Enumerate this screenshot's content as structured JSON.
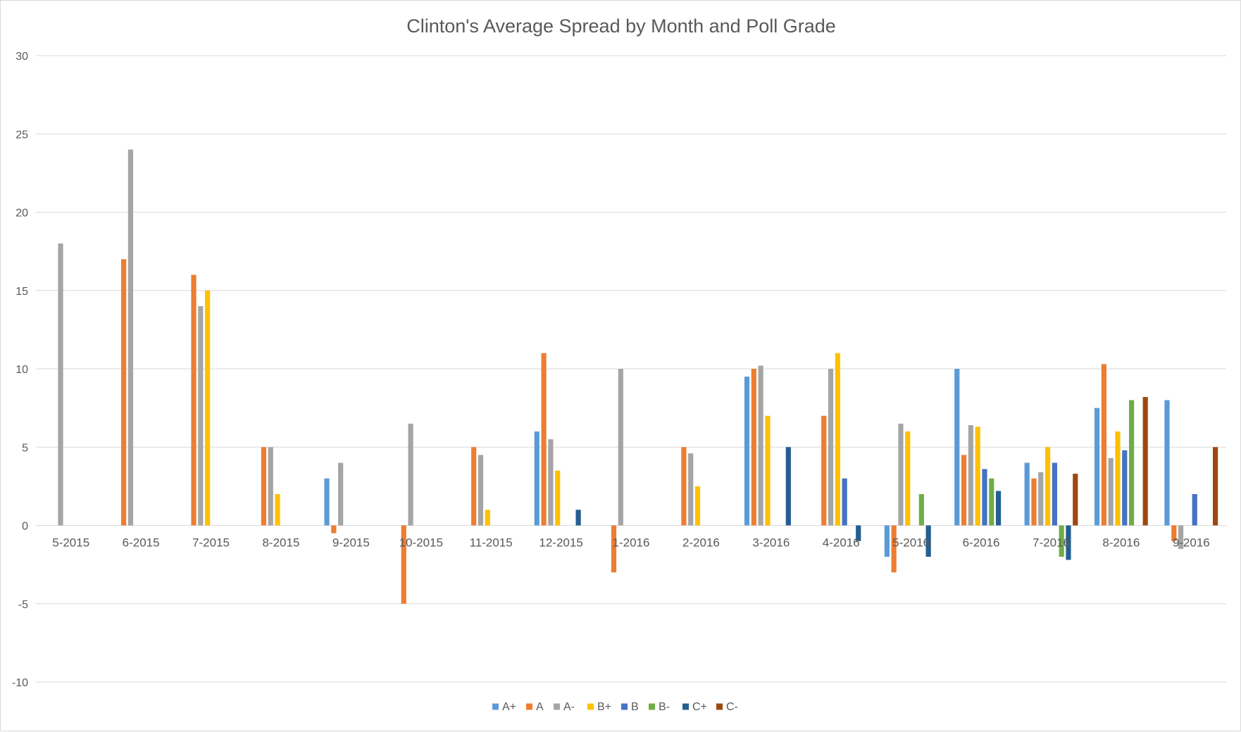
{
  "chart_data": {
    "type": "bar",
    "title": "Clinton's Average Spread by Month and Poll Grade",
    "xlabel": "",
    "ylabel": "",
    "ylim": [
      -10,
      30
    ],
    "yticks": [
      -10,
      -5,
      0,
      5,
      10,
      15,
      20,
      25,
      30
    ],
    "grid": true,
    "legend_position": "bottom",
    "categories": [
      "5-2015",
      "6-2015",
      "7-2015",
      "8-2015",
      "9-2015",
      "10-2015",
      "11-2015",
      "12-2015",
      "1-2016",
      "2-2016",
      "3-2016",
      "4-2016",
      "5-2016",
      "6-2016",
      "7-2016",
      "8-2016",
      "9-2016"
    ],
    "series": [
      {
        "name": "A+",
        "color": "#5b9bd5",
        "values": [
          null,
          null,
          null,
          null,
          3,
          null,
          null,
          6,
          null,
          null,
          9.5,
          null,
          -2,
          10,
          4,
          7.5,
          8
        ]
      },
      {
        "name": "A",
        "color": "#ed7d31",
        "values": [
          null,
          17,
          16,
          5,
          -0.5,
          -5,
          5,
          11,
          -3,
          5,
          10,
          7,
          -3,
          4.5,
          3,
          10.3,
          -1
        ]
      },
      {
        "name": "A-",
        "color": "#a5a5a5",
        "values": [
          18,
          24,
          14,
          5,
          4,
          6.5,
          4.5,
          5.5,
          10,
          4.6,
          10.2,
          10,
          6.5,
          6.4,
          3.4,
          4.3,
          -1.5
        ]
      },
      {
        "name": "B+",
        "color": "#ffc000",
        "values": [
          null,
          null,
          15,
          2,
          null,
          null,
          1,
          3.5,
          null,
          2.5,
          7,
          11,
          6,
          6.3,
          5,
          6,
          null
        ]
      },
      {
        "name": "B",
        "color": "#4472c4",
        "values": [
          null,
          null,
          null,
          null,
          null,
          null,
          null,
          null,
          null,
          null,
          null,
          3,
          null,
          3.6,
          4,
          4.8,
          2
        ]
      },
      {
        "name": "B-",
        "color": "#70ad47",
        "values": [
          null,
          null,
          null,
          null,
          null,
          null,
          null,
          null,
          null,
          null,
          null,
          null,
          2,
          3,
          -2,
          8,
          null
        ]
      },
      {
        "name": "C+",
        "color": "#255e91",
        "values": [
          null,
          null,
          null,
          null,
          null,
          null,
          null,
          1,
          null,
          null,
          5,
          -1,
          -2,
          2.2,
          -2.2,
          null,
          null
        ]
      },
      {
        "name": "C-",
        "color": "#9e480e",
        "values": [
          null,
          null,
          null,
          null,
          null,
          null,
          null,
          null,
          null,
          null,
          null,
          null,
          null,
          null,
          3.3,
          8.2,
          5
        ]
      }
    ]
  }
}
